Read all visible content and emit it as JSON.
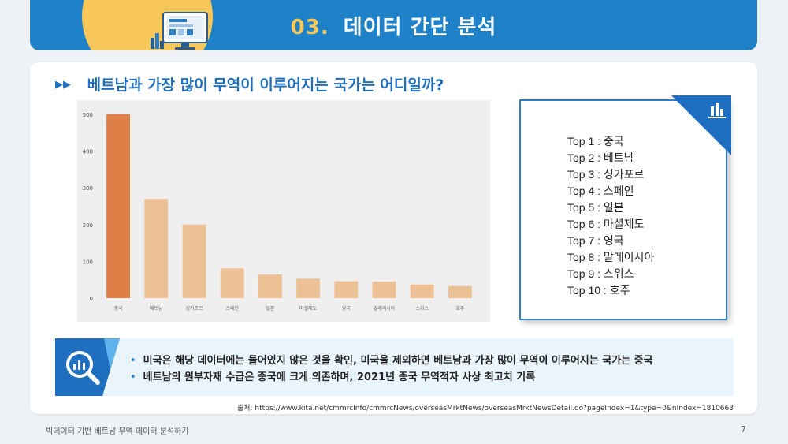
{
  "header": {
    "number": "03.",
    "title": "데이터 간단 분석"
  },
  "question": "베트남과 가장 많이 무역이 이루어지는 국가는 어디일까?",
  "chart_data": {
    "type": "bar",
    "categories": [
      "중국",
      "베트남",
      "싱가포르",
      "스페인",
      "일본",
      "마셜제도",
      "영국",
      "말레이시아",
      "스위스",
      "호주"
    ],
    "values": [
      501,
      270,
      200,
      81,
      64,
      53,
      46,
      45,
      37,
      33
    ],
    "ylim": [
      0,
      500
    ],
    "yticks": [
      0,
      100,
      200,
      300,
      400,
      500
    ],
    "title": "",
    "xlabel": "",
    "ylabel": "",
    "colors": {
      "highlight": "#de7f48",
      "normal": "#edc196"
    }
  },
  "top_list": [
    {
      "rank": "Top 1",
      "country": "중국"
    },
    {
      "rank": "Top 2",
      "country": "베트남"
    },
    {
      "rank": "Top 3",
      "country": "싱가포르"
    },
    {
      "rank": "Top 4",
      "country": "스페인"
    },
    {
      "rank": "Top 5",
      "country": "일본"
    },
    {
      "rank": "Top 6",
      "country": "마셜제도"
    },
    {
      "rank": "Top 7",
      "country": "영국"
    },
    {
      "rank": "Top 8",
      "country": "말레이시아"
    },
    {
      "rank": "Top 9",
      "country": "스위스"
    },
    {
      "rank": "Top 10",
      "country": "호주"
    }
  ],
  "insights": [
    "미국은 해당 데이터에는 들어있지 않은 것을 확인, 미국을 제외하면 베트남과 가장 많이 무역이 이루어지는 국가는 중국",
    "베트남의 원부자재 수급은 중국에 크게 의존하며, 2021년 중국 무역적자 사상 최고치 기록"
  ],
  "source": "출처: https://www.kita.net/cmmrcInfo/cmmrcNews/overseasMrktNews/overseasMrktNewsDetail.do?pageIndex=1&type=0&nIndex=1810663",
  "footer": {
    "text": "빅데이터 기반 베트남 무역 데이터 분석하기",
    "page": "7"
  },
  "colors": {
    "brand": "#1f82c8",
    "accent": "#f7c75a"
  }
}
